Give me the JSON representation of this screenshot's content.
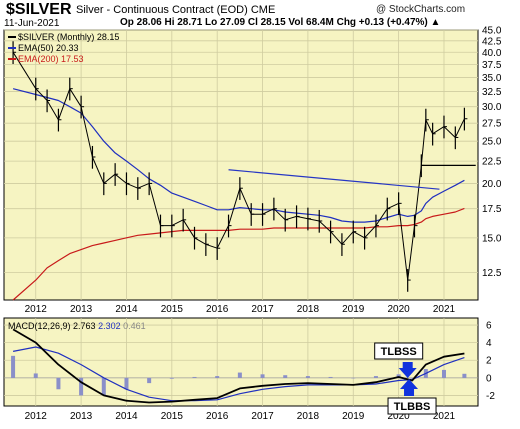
{
  "header": {
    "symbol": "$SILVER",
    "description": "Silver - Continuous Contract (EOD)  CME",
    "copyright": "@ StockCharts.com",
    "date": "11-Jun-2021",
    "ohlc": "Op 28.06  Hi 28.71  Lo 27.09  Cl 28.15  Vol 68.4M  Chg +0.13 (+0.47%) ▲"
  },
  "colors": {
    "panel_bg": "#f6f4c2",
    "price": "#000000",
    "ema50": "#1f2fbf",
    "ema200": "#c81a1a",
    "trendline": "#2636c4",
    "macd_line": "#000000",
    "signal_line": "#2030c0",
    "histogram": "#8a8fc9",
    "arrow": "#1133dd"
  },
  "chart_data": [
    {
      "type": "line",
      "title": "$SILVER (Monthly) 28.15",
      "x_ticks": [
        "2012",
        "2013",
        "2014",
        "2015",
        "2016",
        "2017",
        "2018",
        "2019",
        "2020",
        "2021"
      ],
      "y_ticks": [
        12.5,
        15.0,
        17.5,
        20.0,
        22.5,
        25.0,
        27.5,
        30.0,
        32.5,
        35.0,
        37.5,
        40.0,
        42.5,
        45.0
      ],
      "ylim": [
        10.8,
        45.0
      ],
      "scale": "log",
      "grid": true,
      "legend": "top-left",
      "x": [
        2011.5,
        2012.0,
        2012.25,
        2012.5,
        2012.75,
        2013.0,
        2013.25,
        2013.5,
        2013.75,
        2014.0,
        2014.25,
        2014.5,
        2014.75,
        2015.0,
        2015.25,
        2015.5,
        2015.75,
        2016.0,
        2016.25,
        2016.5,
        2016.75,
        2017.0,
        2017.25,
        2017.5,
        2017.75,
        2018.0,
        2018.25,
        2018.5,
        2018.75,
        2019.0,
        2019.25,
        2019.5,
        2019.75,
        2020.0,
        2020.2,
        2020.35,
        2020.5,
        2020.6,
        2020.75,
        2021.0,
        2021.25,
        2021.45
      ],
      "series": [
        {
          "name": "$SILVER (Monthly) 28.15",
          "values": [
            40,
            33,
            31,
            28,
            33,
            30,
            23,
            20,
            21,
            20,
            19.5,
            20,
            16,
            16,
            16.5,
            15,
            14.5,
            14.2,
            16,
            19.5,
            17,
            17,
            17.5,
            16.5,
            16.8,
            16.6,
            16.4,
            15.5,
            14.5,
            15.5,
            15,
            16,
            17.5,
            18,
            12,
            16,
            22,
            28,
            26,
            27,
            25.5,
            28.15
          ]
        },
        {
          "name": "EMA(50) 20.33",
          "values": [
            33,
            32,
            31.5,
            31,
            30,
            29,
            27,
            25,
            23.5,
            22.5,
            21.5,
            20.5,
            19.8,
            19,
            18.6,
            18.2,
            17.8,
            17.4,
            17.4,
            17.6,
            17.5,
            17.4,
            17.4,
            17.2,
            17.1,
            17.0,
            16.9,
            16.7,
            16.4,
            16.3,
            16.3,
            16.4,
            16.7,
            17,
            16.8,
            16.9,
            17.3,
            18.0,
            18.6,
            19.2,
            19.8,
            20.33
          ]
        },
        {
          "name": "EMA(200) 17.53",
          "values": [
            10.8,
            12,
            12.8,
            13.3,
            13.8,
            14.1,
            14.4,
            14.6,
            14.8,
            15,
            15.2,
            15.3,
            15.4,
            15.5,
            15.6,
            15.6,
            15.6,
            15.6,
            15.6,
            15.7,
            15.7,
            15.7,
            15.8,
            15.8,
            15.8,
            15.8,
            15.8,
            15.8,
            15.8,
            15.8,
            15.8,
            15.9,
            15.9,
            16,
            16,
            16.1,
            16.3,
            16.6,
            16.8,
            17.0,
            17.2,
            17.53
          ]
        }
      ],
      "annotations": [
        {
          "type": "trendline",
          "from": [
            2016.25,
            21.5
          ],
          "to": [
            2020.9,
            19.4
          ]
        },
        {
          "type": "horizontal",
          "from": [
            2020.5,
            22.0
          ],
          "to": [
            2021.7,
            22.0
          ]
        }
      ]
    },
    {
      "type": "line",
      "title": "MACD(12,26,9)",
      "legend_values": [
        "2.763",
        "2.302",
        "0.461"
      ],
      "x_ticks": [
        "2012",
        "2013",
        "2014",
        "2015",
        "2016",
        "2017",
        "2018",
        "2019",
        "2020",
        "2021"
      ],
      "y_ticks": [
        -2,
        0,
        2,
        4,
        6
      ],
      "ylim": [
        -3.2,
        6.8
      ],
      "grid": true,
      "x": [
        2011.5,
        2012.0,
        2012.5,
        2013.0,
        2013.5,
        2014.0,
        2014.5,
        2015.0,
        2015.5,
        2016.0,
        2016.5,
        2017.0,
        2017.5,
        2018.0,
        2018.5,
        2019.0,
        2019.5,
        2020.0,
        2020.3,
        2020.6,
        2021.0,
        2021.45
      ],
      "series": [
        {
          "name": "MACD",
          "values": [
            5.5,
            4.0,
            1.5,
            -0.5,
            -2.0,
            -2.6,
            -2.8,
            -2.7,
            -2.5,
            -2.3,
            -1.2,
            -0.9,
            -0.7,
            -0.6,
            -0.7,
            -0.8,
            -0.5,
            0.1,
            -0.3,
            1.5,
            2.4,
            2.763
          ]
        },
        {
          "name": "Signal",
          "values": [
            3.0,
            3.5,
            2.8,
            1.5,
            0.0,
            -1.3,
            -2.2,
            -2.6,
            -2.6,
            -2.5,
            -1.8,
            -1.3,
            -1.0,
            -0.8,
            -0.8,
            -0.8,
            -0.7,
            -0.3,
            -0.2,
            0.5,
            1.5,
            2.302
          ]
        },
        {
          "name": "Histogram",
          "values": [
            2.5,
            0.5,
            -1.3,
            -2.0,
            -2.0,
            -1.3,
            -0.6,
            -0.1,
            0.1,
            0.2,
            0.6,
            0.4,
            0.3,
            0.2,
            0.1,
            0.0,
            0.2,
            0.4,
            -0.1,
            1.0,
            0.9,
            0.461
          ]
        }
      ],
      "annotations": [
        {
          "label": "TLBSS",
          "at": [
            2020.2,
            0.3
          ],
          "direction": "down"
        },
        {
          "label": "TLBBS",
          "at": [
            2020.45,
            -0.6
          ],
          "direction": "up"
        }
      ]
    }
  ]
}
